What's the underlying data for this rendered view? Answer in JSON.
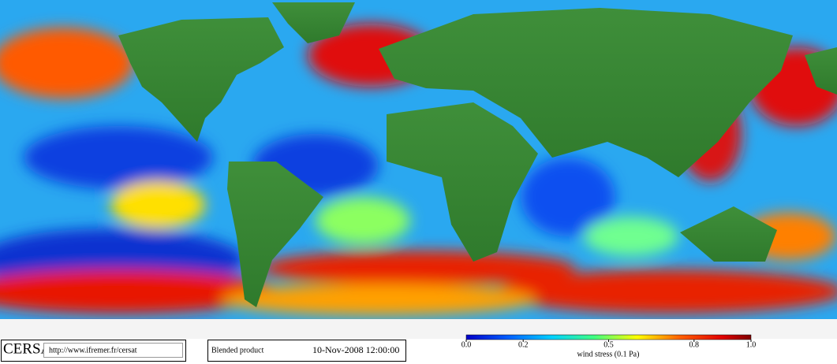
{
  "header": {
    "logo": "CERSAT",
    "url": "http://www.ifremer.fr/cersat"
  },
  "product": {
    "name": "Blended product",
    "datetime": "10-Nov-2008 12:00:00"
  },
  "colorbar": {
    "label": "wind stress (0.1 Pa)",
    "lim": [
      0,
      1
    ],
    "ticks": [
      {
        "value": 0,
        "label": "0.0"
      },
      0.2,
      0.5,
      0.8,
      {
        "value": 1,
        "label": "1.0"
      }
    ]
  }
}
